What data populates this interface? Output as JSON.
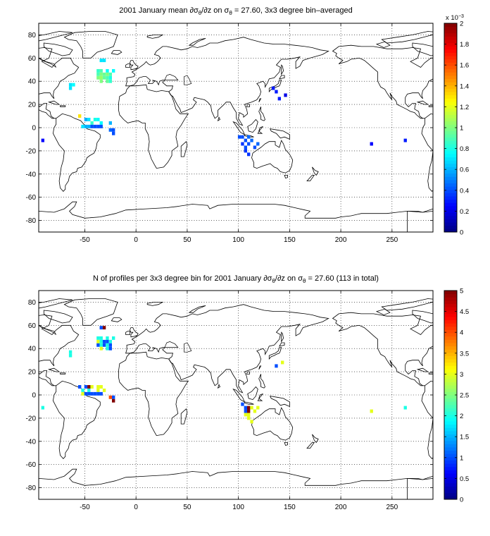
{
  "chart_data": [
    {
      "type": "heatmap",
      "title_parts": [
        "2001 January mean ",
        "∂σ",
        "θ",
        "/∂z on σ",
        "θ",
        " = 27.60, 3x3 degree bin–averaged"
      ],
      "xlabel": "",
      "ylabel": "",
      "xlim": [
        -95,
        290
      ],
      "ylim": [
        -90,
        90
      ],
      "xticks": [
        -50,
        0,
        50,
        100,
        150,
        200,
        250
      ],
      "yticks": [
        -80,
        -60,
        -40,
        -20,
        0,
        20,
        40,
        60,
        80
      ],
      "grid": true,
      "bin_size_deg": 3,
      "colorbar": {
        "range": [
          0,
          2
        ],
        "ticks": [
          "0",
          "0.2",
          "0.4",
          "0.6",
          "0.8",
          "1",
          "1.2",
          "1.4",
          "1.6",
          "1.8",
          "2"
        ],
        "multiplier": "x 10^-3",
        "colormap": "jet"
      },
      "cells": [
        [
          -34,
          58,
          0.7
        ],
        [
          -31,
          58,
          0.7
        ],
        [
          -37,
          49,
          0.85
        ],
        [
          -34,
          49,
          0.9
        ],
        [
          -28,
          49,
          0.75
        ],
        [
          -22,
          49,
          0.75
        ],
        [
          -37,
          46,
          0.9
        ],
        [
          -34,
          46,
          1.0
        ],
        [
          -31,
          46,
          0.95
        ],
        [
          -28,
          46,
          1.0
        ],
        [
          -25,
          46,
          0.9
        ],
        [
          -37,
          43,
          1.0
        ],
        [
          -34,
          43,
          1.05
        ],
        [
          -31,
          43,
          0.95
        ],
        [
          -28,
          43,
          0.9
        ],
        [
          -25,
          43,
          0.8
        ],
        [
          -34,
          40,
          1.0
        ],
        [
          -28,
          40,
          0.95
        ],
        [
          -25,
          40,
          0.85
        ],
        [
          -64,
          37,
          0.7
        ],
        [
          -61,
          37,
          0.75
        ],
        [
          -64,
          34,
          0.7
        ],
        [
          -55,
          10,
          1.3
        ],
        [
          -49,
          7,
          0.6
        ],
        [
          -46,
          7,
          0.7
        ],
        [
          -40,
          7,
          0.8
        ],
        [
          -37,
          7,
          0.75
        ],
        [
          -43,
          4,
          0.85
        ],
        [
          -34,
          4,
          0.75
        ],
        [
          -25,
          4,
          0.6
        ],
        [
          -52,
          1,
          0.7
        ],
        [
          -49,
          1,
          0.6
        ],
        [
          -46,
          1,
          0.6
        ],
        [
          -43,
          1,
          0.4
        ],
        [
          -40,
          1,
          0.4
        ],
        [
          -37,
          1,
          0.4
        ],
        [
          -34,
          1,
          0.4
        ],
        [
          -25,
          -2,
          0.45
        ],
        [
          -22,
          -2,
          0.4
        ],
        [
          -22,
          -5,
          0.4
        ],
        [
          -91,
          -11,
          0.25
        ],
        [
          134,
          34,
          0.3
        ],
        [
          137,
          31,
          0.3
        ],
        [
          146,
          28,
          0.2
        ],
        [
          140,
          25,
          0.3
        ],
        [
          101,
          -8,
          0.4
        ],
        [
          104,
          -8,
          0.4
        ],
        [
          110,
          -8,
          0.45
        ],
        [
          107,
          -11,
          0.4
        ],
        [
          113,
          -11,
          0.45
        ],
        [
          104,
          -14,
          0.35
        ],
        [
          110,
          -14,
          0.4
        ],
        [
          119,
          -14,
          0.45
        ],
        [
          107,
          -17,
          0.4
        ],
        [
          116,
          -17,
          0.4
        ],
        [
          107,
          -20,
          0.35
        ],
        [
          110,
          -23,
          0.35
        ],
        [
          230,
          -14,
          0.25
        ],
        [
          263,
          -11,
          0.3
        ]
      ]
    },
    {
      "type": "heatmap",
      "title_parts": [
        "N of profiles per 3x3 degree bin for 2001 January ",
        "∂σ",
        "θ",
        "/∂z on σ",
        "θ",
        " = 27.60 (113 in total)"
      ],
      "xlabel": "",
      "ylabel": "",
      "xlim": [
        -95,
        290
      ],
      "ylim": [
        -90,
        90
      ],
      "xticks": [
        -50,
        0,
        50,
        100,
        150,
        200,
        250
      ],
      "yticks": [
        -80,
        -60,
        -40,
        -20,
        0,
        20,
        40,
        60,
        80
      ],
      "grid": true,
      "bin_size_deg": 3,
      "colorbar": {
        "range": [
          0,
          5
        ],
        "ticks": [
          "0",
          "0.5",
          "1",
          "1.5",
          "2",
          "2.5",
          "3",
          "3.5",
          "4",
          "4.5",
          "5"
        ],
        "multiplier": "",
        "colormap": "jet"
      },
      "cells": [
        [
          -34,
          58,
          1
        ],
        [
          -31,
          58,
          5
        ],
        [
          -37,
          49,
          2
        ],
        [
          -34,
          49,
          2
        ],
        [
          -28,
          49,
          2
        ],
        [
          -22,
          49,
          2
        ],
        [
          -37,
          46,
          3
        ],
        [
          -34,
          46,
          2
        ],
        [
          -31,
          46,
          1
        ],
        [
          -28,
          46,
          1
        ],
        [
          -25,
          46,
          2
        ],
        [
          -37,
          43,
          1
        ],
        [
          -34,
          43,
          2
        ],
        [
          -31,
          43,
          1
        ],
        [
          -28,
          43,
          2
        ],
        [
          -25,
          43,
          1
        ],
        [
          -34,
          40,
          3
        ],
        [
          -28,
          40,
          2
        ],
        [
          -25,
          40,
          1
        ],
        [
          -64,
          37,
          2
        ],
        [
          -64,
          34,
          2
        ],
        [
          -55,
          7,
          1
        ],
        [
          -52,
          4,
          2
        ],
        [
          -49,
          7,
          1
        ],
        [
          -46,
          7,
          5
        ],
        [
          -43,
          7,
          3
        ],
        [
          -37,
          7,
          3
        ],
        [
          -34,
          7,
          3
        ],
        [
          -31,
          4,
          3
        ],
        [
          -37,
          4,
          3
        ],
        [
          -46,
          4,
          2
        ],
        [
          -52,
          1,
          3
        ],
        [
          -49,
          1,
          1
        ],
        [
          -46,
          1,
          1
        ],
        [
          -43,
          1,
          1
        ],
        [
          -40,
          1,
          1
        ],
        [
          -37,
          1,
          1
        ],
        [
          -34,
          1,
          1
        ],
        [
          -25,
          -2,
          4
        ],
        [
          -22,
          -2,
          1
        ],
        [
          -22,
          -5,
          5
        ],
        [
          -91,
          -11,
          2
        ],
        [
          137,
          25,
          1
        ],
        [
          143,
          28,
          3
        ],
        [
          104,
          -8,
          1
        ],
        [
          107,
          -11,
          1
        ],
        [
          110,
          -11,
          5
        ],
        [
          113,
          -11,
          3
        ],
        [
          119,
          -11,
          3
        ],
        [
          116,
          -14,
          3
        ],
        [
          107,
          -14,
          1
        ],
        [
          110,
          -14,
          5
        ],
        [
          107,
          -17,
          3
        ],
        [
          110,
          -17,
          3
        ],
        [
          110,
          -20,
          3
        ],
        [
          113,
          -23,
          3
        ],
        [
          230,
          -14,
          3
        ],
        [
          263,
          -11,
          2
        ]
      ]
    }
  ]
}
